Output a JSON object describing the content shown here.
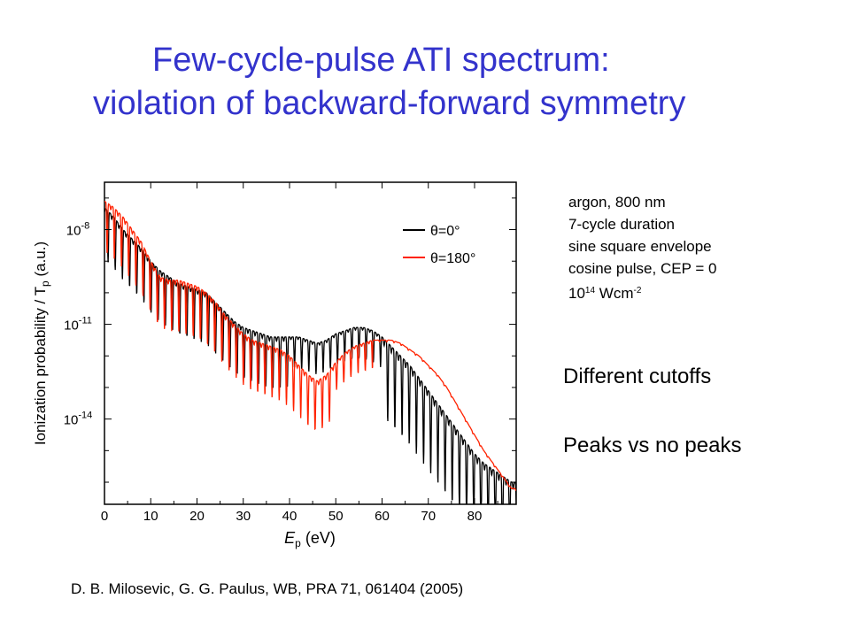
{
  "title": {
    "line1": "Few-cycle-pulse ATI spectrum:",
    "line2": "violation of backward-forward symmetry"
  },
  "info": {
    "line1": "argon,  800 nm",
    "line2": "7-cycle duration",
    "line3": "sine square envelope",
    "line4": "cosine pulse, CEP = 0",
    "intensity_base": "10",
    "intensity_exp": "14",
    "intensity_unit": " Wcm",
    "intensity_unit_exp": "-2"
  },
  "notes": {
    "cutoffs": "Different cutoffs",
    "peaks": "Peaks vs no peaks"
  },
  "citation": "D. B. Milosevic, G. G. Paulus, WB,  PRA 71, 061404 (2005)",
  "chart_data": {
    "type": "line",
    "ylabel": "Ionization probability / T",
    "ylabel_sub": "p",
    "ylabel_unit": " (a.u.)",
    "xlabel": "E",
    "xlabel_sub": "p",
    "xlabel_unit": "  (eV)",
    "x_ticks": [
      "0",
      "10",
      "20",
      "30",
      "40",
      "50",
      "60",
      "70",
      "80"
    ],
    "y_ticks": [
      {
        "base": "10",
        "exp": "-8"
      },
      {
        "base": "10",
        "exp": "-11"
      },
      {
        "base": "10",
        "exp": "-14"
      }
    ],
    "xlim": [
      0,
      89
    ],
    "ylim": [
      -16.7,
      -6.5
    ],
    "y_scale": "log",
    "legend_position": "top-right",
    "series": [
      {
        "name": "θ=0°",
        "color": "#000000",
        "x": [
          0,
          2,
          4,
          6,
          8,
          10,
          12,
          14,
          16,
          18,
          20,
          22,
          24,
          26,
          28,
          30,
          32,
          34,
          36,
          38,
          40,
          42,
          44,
          46,
          48,
          50,
          52,
          54,
          56,
          58,
          60,
          62,
          64,
          66,
          68,
          70,
          72,
          74,
          76,
          78,
          80,
          82,
          84,
          86,
          88
        ],
        "y": [
          -7.3,
          -7.6,
          -8.0,
          -8.3,
          -8.6,
          -9.0,
          -9.3,
          -9.5,
          -9.7,
          -9.8,
          -9.9,
          -10.0,
          -10.3,
          -10.6,
          -10.9,
          -11.1,
          -11.2,
          -11.3,
          -11.4,
          -11.4,
          -11.4,
          -11.4,
          -11.5,
          -11.6,
          -11.5,
          -11.3,
          -11.2,
          -11.1,
          -11.1,
          -11.2,
          -11.4,
          -11.7,
          -12.0,
          -12.3,
          -12.7,
          -13.1,
          -13.5,
          -13.9,
          -14.3,
          -14.7,
          -15.1,
          -15.4,
          -15.6,
          -15.8,
          -16.0
        ]
      },
      {
        "name": "θ=180°",
        "color": "#ff2200",
        "x": [
          0,
          2,
          4,
          6,
          8,
          10,
          12,
          14,
          16,
          18,
          20,
          22,
          24,
          26,
          28,
          30,
          32,
          34,
          36,
          38,
          40,
          42,
          44,
          46,
          48,
          50,
          52,
          54,
          56,
          58,
          60,
          62,
          64,
          66,
          68,
          70,
          72,
          74,
          76,
          78,
          80,
          82,
          84,
          86,
          88
        ],
        "y": [
          -7.1,
          -7.3,
          -7.6,
          -8.0,
          -8.4,
          -9.0,
          -9.5,
          -9.6,
          -9.6,
          -9.7,
          -9.8,
          -10.0,
          -10.3,
          -10.7,
          -11.0,
          -11.3,
          -11.5,
          -11.6,
          -11.7,
          -11.8,
          -12.0,
          -12.3,
          -12.6,
          -12.8,
          -12.6,
          -12.2,
          -11.9,
          -11.7,
          -11.6,
          -11.5,
          -11.5,
          -11.5,
          -11.6,
          -11.8,
          -12.0,
          -12.3,
          -12.6,
          -13.0,
          -13.5,
          -14.0,
          -14.5,
          -15.0,
          -15.4,
          -15.8,
          -16.2
        ]
      }
    ]
  }
}
